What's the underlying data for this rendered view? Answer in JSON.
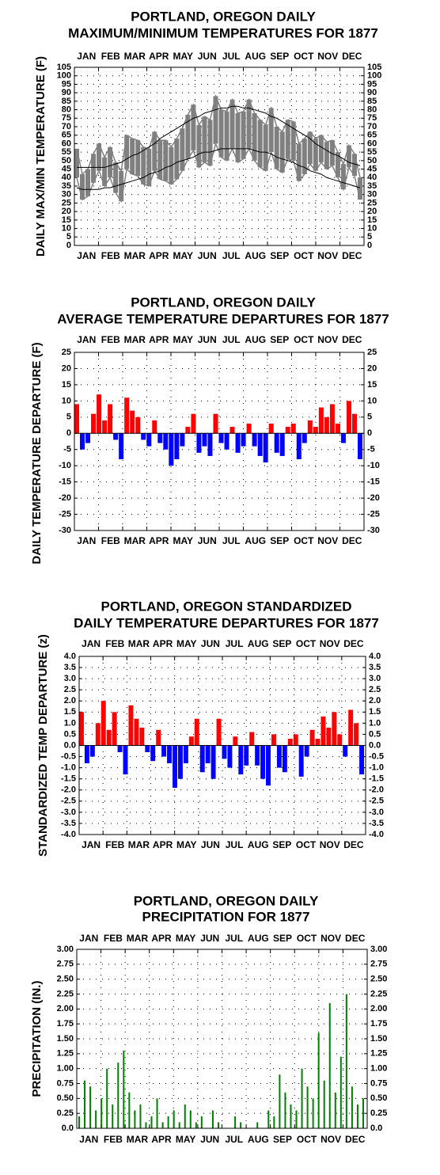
{
  "chart_data": [
    {
      "type": "range",
      "title": [
        "PORTLAND, OREGON DAILY",
        "MAXIMUM/MINIMUM TEMPERATURES FOR 1877"
      ],
      "y_label": "DAILY MAX/MIN TEMPERATURE (F)",
      "months": [
        "JAN",
        "FEB",
        "MAR",
        "APR",
        "MAY",
        "JUN",
        "JUL",
        "AUG",
        "SEP",
        "OCT",
        "NOV",
        "DEC"
      ],
      "x": [
        3,
        10,
        17,
        24,
        31,
        38,
        45,
        52,
        59,
        66,
        73,
        80,
        87,
        94,
        101,
        108,
        115,
        122,
        129,
        136,
        143,
        150,
        157,
        164,
        171,
        178,
        185,
        192,
        199,
        206,
        213,
        220,
        227,
        234,
        241,
        248,
        255,
        262,
        269,
        276,
        283,
        290,
        297,
        304,
        311,
        318,
        325,
        332,
        339,
        346,
        353,
        360
      ],
      "xlim": [
        0,
        365
      ],
      "series": [
        {
          "color": "#808080",
          "values": [
            57,
            42,
            45,
            54,
            60,
            52,
            58,
            49,
            44,
            65,
            63,
            62,
            58,
            57,
            67,
            62,
            62,
            58,
            63,
            69,
            77,
            83,
            71,
            76,
            74,
            88,
            80,
            79,
            86,
            78,
            79,
            86,
            78,
            74,
            71,
            81,
            70,
            67,
            74,
            73,
            60,
            63,
            67,
            63,
            65,
            61,
            62,
            55,
            48,
            59,
            54,
            40
          ]
        },
        {
          "color": "#808080",
          "values": [
            40,
            27,
            29,
            37,
            44,
            35,
            40,
            31,
            26,
            45,
            42,
            41,
            36,
            35,
            44,
            39,
            38,
            36,
            39,
            44,
            51,
            56,
            46,
            49,
            47,
            60,
            52,
            50,
            57,
            49,
            51,
            57,
            50,
            46,
            44,
            55,
            45,
            43,
            51,
            50,
            38,
            42,
            48,
            44,
            49,
            45,
            47,
            40,
            33,
            46,
            41,
            27
          ]
        },
        {
          "color": "#000000",
          "values": [
            46,
            46,
            46,
            46,
            46,
            46,
            47,
            48,
            49,
            51,
            53,
            54,
            56,
            58,
            60,
            63,
            65,
            67,
            69,
            71,
            73,
            75,
            76,
            78,
            79,
            80,
            81,
            81,
            82,
            82,
            81,
            81,
            80,
            79,
            78,
            76,
            75,
            73,
            71,
            69,
            67,
            65,
            63,
            60,
            58,
            56,
            54,
            53,
            51,
            49,
            48,
            47
          ]
        },
        {
          "color": "#000000",
          "values": [
            34,
            33,
            33,
            33,
            33,
            34,
            34,
            35,
            36,
            37,
            38,
            39,
            40,
            42,
            43,
            44,
            46,
            47,
            49,
            50,
            51,
            52,
            54,
            55,
            55,
            56,
            57,
            57,
            57,
            57,
            57,
            57,
            56,
            55,
            55,
            54,
            52,
            51,
            50,
            49,
            47,
            46,
            44,
            43,
            42,
            40,
            39,
            38,
            37,
            36,
            35,
            34
          ]
        }
      ],
      "ylim": [
        0,
        105
      ],
      "yticks": [
        0,
        5,
        10,
        15,
        20,
        25,
        30,
        35,
        40,
        45,
        50,
        55,
        60,
        65,
        70,
        75,
        80,
        85,
        90,
        95,
        100,
        105
      ],
      "grid": true
    },
    {
      "type": "diverging",
      "title": [
        "PORTLAND, OREGON DAILY",
        "AVERAGE TEMPERATURE DEPARTURES FOR 1877"
      ],
      "y_label": "DAILY TEMPERATURE DEPARTURE (F)",
      "months": [
        "JAN",
        "FEB",
        "MAR",
        "APR",
        "MAY",
        "JUN",
        "JUL",
        "AUG",
        "SEP",
        "OCT",
        "NOV",
        "DEC"
      ],
      "x": [
        3,
        10,
        17,
        24,
        31,
        38,
        45,
        52,
        59,
        66,
        73,
        80,
        87,
        94,
        101,
        108,
        115,
        122,
        129,
        136,
        143,
        150,
        157,
        164,
        171,
        178,
        185,
        192,
        199,
        206,
        213,
        220,
        227,
        234,
        241,
        248,
        255,
        262,
        269,
        276,
        283,
        290,
        297,
        304,
        311,
        318,
        325,
        332,
        339,
        346,
        353,
        360
      ],
      "xlim": [
        0,
        365
      ],
      "values": [
        9,
        -5,
        -3,
        6,
        12,
        4,
        9,
        -2,
        -8,
        11,
        7,
        5,
        -2,
        -4,
        4,
        -3,
        -5,
        -10,
        -8,
        -4,
        2,
        6,
        -6,
        -4,
        -7,
        6,
        -3,
        -5,
        2,
        -6,
        -4,
        3,
        -4,
        -7,
        -9,
        3,
        -6,
        -7,
        2,
        3,
        -8,
        -3,
        4,
        2,
        8,
        5,
        9,
        3,
        -3,
        10,
        6,
        -8
      ],
      "positive_color": "#ff0000",
      "negative_color": "#0000ff",
      "ylim": [
        -30,
        25
      ],
      "yticks": [
        -30,
        -25,
        -20,
        -15,
        -10,
        -5,
        0,
        5,
        10,
        15,
        20,
        25
      ],
      "grid": true
    },
    {
      "type": "diverging",
      "title": [
        "PORTLAND, OREGON STANDARDIZED",
        "DAILY TEMPERATURE DEPARTURES FOR 1877"
      ],
      "y_label": "STANDARDIZED TEMP DEPARTURE (z)",
      "months": [
        "JAN",
        "FEB",
        "MAR",
        "APR",
        "MAY",
        "JUN",
        "JUL",
        "AUG",
        "SEP",
        "OCT",
        "NOV",
        "DEC"
      ],
      "x": [
        3,
        10,
        17,
        24,
        31,
        38,
        45,
        52,
        59,
        66,
        73,
        80,
        87,
        94,
        101,
        108,
        115,
        122,
        129,
        136,
        143,
        150,
        157,
        164,
        171,
        178,
        185,
        192,
        199,
        206,
        213,
        220,
        227,
        234,
        241,
        248,
        255,
        262,
        269,
        276,
        283,
        290,
        297,
        304,
        311,
        318,
        325,
        332,
        339,
        346,
        353,
        360
      ],
      "xlim": [
        0,
        365
      ],
      "values": [
        1.5,
        -0.8,
        -0.5,
        1.0,
        2.0,
        0.7,
        1.5,
        -0.3,
        -1.3,
        1.8,
        1.2,
        0.8,
        -0.3,
        -0.7,
        0.7,
        -0.5,
        -0.8,
        -1.9,
        -1.5,
        -0.8,
        0.4,
        1.2,
        -1.2,
        -0.8,
        -1.5,
        1.2,
        -0.6,
        -1.0,
        0.4,
        -1.3,
        -0.9,
        0.6,
        -0.9,
        -1.5,
        -1.8,
        0.5,
        -1.0,
        -1.2,
        0.3,
        0.5,
        -1.4,
        -0.5,
        0.7,
        0.3,
        1.3,
        0.8,
        1.5,
        0.5,
        -0.5,
        1.6,
        1.0,
        -1.3
      ],
      "positive_color": "#ff0000",
      "negative_color": "#0000ff",
      "ylim": [
        -4,
        4
      ],
      "yticks": [
        {
          "value": -4,
          "label": "-4.0"
        },
        -3.5,
        {
          "value": -3,
          "label": "-3.0"
        },
        -2.5,
        {
          "value": -2,
          "label": "-2.0"
        },
        -1.5,
        {
          "value": -1,
          "label": "-1.0"
        },
        -0.5,
        {
          "value": 0,
          "label": "0.0"
        },
        0.5,
        {
          "value": 1,
          "label": "1.0"
        },
        1.5,
        {
          "value": 2,
          "label": "2.0"
        },
        2.5,
        {
          "value": 3,
          "label": "3.0"
        },
        3.5,
        {
          "value": 4,
          "label": "4.0"
        }
      ],
      "grid": true
    },
    {
      "type": "bar",
      "title": [
        "PORTLAND, OREGON DAILY",
        "PRECIPITATION FOR 1877"
      ],
      "y_label": "PRECIPITATION (IN.)",
      "months": [
        "JAN",
        "FEB",
        "MAR",
        "APR",
        "MAY",
        "JUN",
        "JUL",
        "AUG",
        "SEP",
        "OCT",
        "NOV",
        "DEC"
      ],
      "x": [
        3,
        10,
        17,
        24,
        31,
        38,
        45,
        52,
        59,
        66,
        73,
        80,
        87,
        94,
        101,
        108,
        115,
        122,
        129,
        136,
        143,
        150,
        157,
        164,
        171,
        178,
        185,
        192,
        199,
        206,
        213,
        220,
        227,
        234,
        241,
        248,
        255,
        262,
        269,
        276,
        283,
        290,
        297,
        304,
        311,
        318,
        325,
        332,
        339,
        346,
        353,
        360
      ],
      "xlim": [
        0,
        365
      ],
      "values": [
        0.2,
        0.8,
        0.7,
        0.3,
        0.5,
        1.0,
        0.4,
        1.1,
        1.3,
        0.6,
        0.3,
        0.4,
        0.1,
        0.2,
        0.5,
        0.1,
        0.2,
        0.3,
        0.1,
        0.4,
        0.3,
        0.1,
        0.2,
        0,
        0.3,
        0.1,
        0,
        0,
        0.2,
        0.1,
        0,
        0,
        0.1,
        0,
        0.3,
        0.2,
        0.9,
        0.6,
        0.4,
        0.3,
        1.0,
        0.7,
        0.5,
        1.6,
        0.8,
        2.1,
        0.6,
        1.2,
        2.25,
        0.7,
        0.4,
        0.5
      ],
      "color": "#008000",
      "ylim": [
        0,
        3
      ],
      "yticks": [
        {
          "value": 0,
          "label": "0.0"
        },
        0.25,
        {
          "value": 0.5,
          "label": "0.50"
        },
        0.75,
        {
          "value": 1,
          "label": "1.00"
        },
        1.25,
        {
          "value": 1.5,
          "label": "1.50"
        },
        1.75,
        {
          "value": 2,
          "label": "2.00"
        },
        2.25,
        {
          "value": 2.5,
          "label": "2.50"
        },
        2.75,
        {
          "value": 3,
          "label": "3.00"
        }
      ],
      "grid": true
    }
  ]
}
